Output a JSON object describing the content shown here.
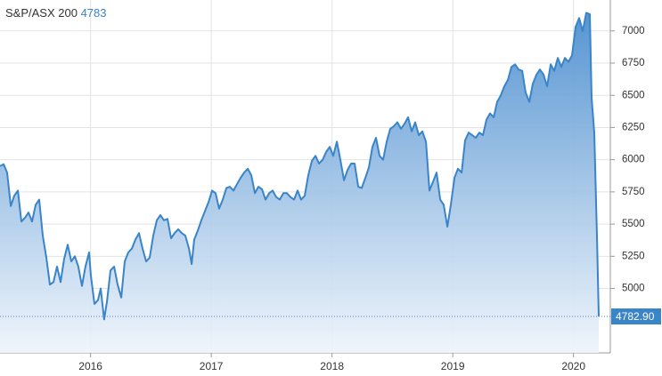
{
  "chart_data": {
    "type": "area",
    "title": "S&P/ASX 200",
    "headline_value": 4783,
    "color": "#3a84c8",
    "grid": true,
    "x": [
      2015.25,
      2015.28,
      2015.309,
      2015.339,
      2015.368,
      2015.398,
      2015.427,
      2015.457,
      2015.486,
      2015.516,
      2015.545,
      2015.575,
      2015.604,
      2015.634,
      2015.663,
      2015.693,
      2015.722,
      2015.752,
      2015.781,
      2015.811,
      2015.84,
      2015.87,
      2015.899,
      2015.929,
      2015.958,
      2015.988,
      2016.003,
      2016.032,
      2016.062,
      2016.084,
      2016.113,
      2016.136,
      2016.165,
      2016.195,
      2016.224,
      2016.254,
      2016.283,
      2016.313,
      2016.342,
      2016.372,
      2016.401,
      2016.431,
      2016.46,
      2016.49,
      2016.519,
      2016.549,
      2016.578,
      2016.608,
      2016.637,
      2016.667,
      2016.696,
      2016.726,
      2016.756,
      2016.785,
      2016.815,
      2016.837,
      2016.859,
      2016.888,
      2016.918,
      2016.947,
      2016.977,
      2017.006,
      2017.036,
      2017.065,
      2017.095,
      2017.125,
      2017.154,
      2017.184,
      2017.213,
      2017.243,
      2017.272,
      2017.302,
      2017.331,
      2017.361,
      2017.39,
      2017.42,
      2017.449,
      2017.479,
      2017.508,
      2017.538,
      2017.567,
      2017.597,
      2017.626,
      2017.656,
      2017.685,
      2017.715,
      2017.744,
      2017.774,
      2017.803,
      2017.833,
      2017.863,
      2017.892,
      2017.922,
      2017.951,
      2017.981,
      2018.01,
      2018.04,
      2018.069,
      2018.099,
      2018.128,
      2018.158,
      2018.187,
      2018.217,
      2018.246,
      2018.276,
      2018.305,
      2018.335,
      2018.364,
      2018.394,
      2018.423,
      2018.453,
      2018.482,
      2018.512,
      2018.541,
      2018.571,
      2018.601,
      2018.63,
      2018.66,
      2018.689,
      2018.719,
      2018.748,
      2018.778,
      2018.807,
      2018.837,
      2018.866,
      2018.896,
      2018.925,
      2018.955,
      2018.984,
      2019.014,
      2019.043,
      2019.073,
      2019.102,
      2019.132,
      2019.161,
      2019.191,
      2019.22,
      2019.25,
      2019.279,
      2019.309,
      2019.339,
      2019.368,
      2019.398,
      2019.427,
      2019.457,
      2019.486,
      2019.516,
      2019.545,
      2019.575,
      2019.604,
      2019.634,
      2019.663,
      2019.693,
      2019.722,
      2019.752,
      2019.781,
      2019.811,
      2019.84,
      2019.87,
      2019.899,
      2019.929,
      2019.958,
      2019.988,
      2020.017,
      2020.047,
      2020.076,
      2020.106,
      2020.135,
      2020.15,
      2020.172,
      2020.195,
      2020.209
    ],
    "values": [
      5950,
      5965,
      5900,
      5640,
      5720,
      5760,
      5520,
      5550,
      5590,
      5520,
      5650,
      5690,
      5410,
      5240,
      5030,
      5050,
      5170,
      5050,
      5230,
      5340,
      5210,
      5250,
      5170,
      5020,
      5170,
      5280,
      5100,
      4880,
      4910,
      5000,
      4760,
      4900,
      5140,
      5170,
      5030,
      4930,
      5210,
      5280,
      5310,
      5380,
      5430,
      5310,
      5210,
      5240,
      5410,
      5530,
      5570,
      5530,
      5540,
      5390,
      5430,
      5460,
      5430,
      5410,
      5310,
      5190,
      5380,
      5450,
      5530,
      5600,
      5670,
      5760,
      5740,
      5620,
      5690,
      5780,
      5790,
      5760,
      5810,
      5860,
      5900,
      5930,
      5880,
      5740,
      5790,
      5770,
      5690,
      5740,
      5760,
      5710,
      5690,
      5740,
      5740,
      5710,
      5690,
      5760,
      5690,
      5720,
      5880,
      5990,
      6030,
      5970,
      6000,
      6060,
      6100,
      6030,
      6140,
      6000,
      5840,
      5920,
      5970,
      5970,
      5790,
      5780,
      5860,
      5940,
      6100,
      6170,
      6030,
      6000,
      6140,
      6240,
      6260,
      6290,
      6240,
      6280,
      6330,
      6220,
      6290,
      6190,
      6220,
      6140,
      5760,
      5830,
      5900,
      5690,
      5650,
      5480,
      5650,
      5860,
      5930,
      5900,
      6150,
      6210,
      6190,
      6170,
      6210,
      6190,
      6310,
      6360,
      6330,
      6450,
      6500,
      6570,
      6620,
      6720,
      6740,
      6700,
      6690,
      6520,
      6450,
      6590,
      6660,
      6700,
      6660,
      6570,
      6740,
      6690,
      6790,
      6720,
      6790,
      6760,
      6810,
      7030,
      7100,
      7000,
      7140,
      7130,
      6480,
      6210,
      5380,
      4782.9
    ],
    "last_value_label": {
      "value": 4782.9,
      "label": "4782.90"
    },
    "xlim": [
      2015.25,
      2020.305
    ],
    "xticks": [
      2016,
      2017,
      2018,
      2019,
      2020
    ],
    "ylim": [
      4500,
      7240
    ],
    "yticks": [
      5000,
      5250,
      5500,
      5750,
      6000,
      6250,
      6500,
      6750,
      7000
    ]
  }
}
